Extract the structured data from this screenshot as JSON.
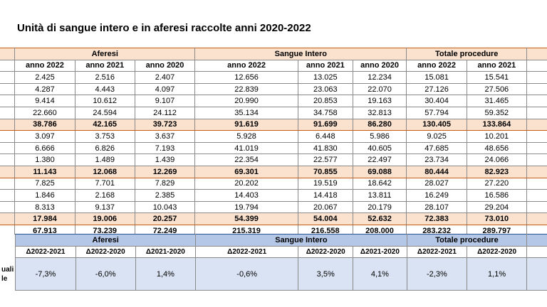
{
  "title": "Unità di sangue intero e in aferesi raccolte anni 2020-2022",
  "groups": [
    "Aferesi",
    "Sangue Intero",
    "Totale procedure"
  ],
  "years": [
    "anno 2022",
    "anno 2021",
    "anno 2020"
  ],
  "rows": [
    {
      "type": "data",
      "cells": [
        "2.425",
        "2.516",
        "2.407",
        "12.656",
        "13.025",
        "12.234",
        "15.081",
        "15.541"
      ]
    },
    {
      "type": "data",
      "cells": [
        "4.287",
        "4.443",
        "4.097",
        "22.839",
        "23.063",
        "22.070",
        "27.126",
        "27.506"
      ]
    },
    {
      "type": "data",
      "cells": [
        "9.414",
        "10.612",
        "9.107",
        "20.990",
        "20.853",
        "19.163",
        "30.404",
        "31.465"
      ]
    },
    {
      "type": "data",
      "cells": [
        "22.660",
        "24.594",
        "24.112",
        "35.134",
        "34.758",
        "32.813",
        "57.794",
        "59.352"
      ]
    },
    {
      "type": "group",
      "cells": [
        "38.786",
        "42.165",
        "39.723",
        "91.619",
        "91.699",
        "86.280",
        "130.405",
        "133.864"
      ]
    },
    {
      "type": "data",
      "cells": [
        "3.097",
        "3.753",
        "3.637",
        "5.928",
        "6.448",
        "5.986",
        "9.025",
        "10.201"
      ]
    },
    {
      "type": "data",
      "cells": [
        "6.666",
        "6.826",
        "7.193",
        "41.019",
        "41.830",
        "40.605",
        "47.685",
        "48.656"
      ]
    },
    {
      "type": "data",
      "cells": [
        "1.380",
        "1.489",
        "1.439",
        "22.354",
        "22.577",
        "22.497",
        "23.734",
        "24.066"
      ]
    },
    {
      "type": "group",
      "cells": [
        "11.143",
        "12.068",
        "12.269",
        "69.301",
        "70.855",
        "69.088",
        "80.444",
        "82.923"
      ]
    },
    {
      "type": "data",
      "cells": [
        "7.825",
        "7.701",
        "7.829",
        "20.202",
        "19.519",
        "18.642",
        "28.027",
        "27.220"
      ]
    },
    {
      "type": "data",
      "cells": [
        "1.846",
        "2.168",
        "2.385",
        "14.403",
        "14.418",
        "13.811",
        "16.249",
        "16.586"
      ]
    },
    {
      "type": "data",
      "cells": [
        "8.313",
        "9.137",
        "10.043",
        "19.794",
        "20.067",
        "20.179",
        "28.107",
        "29.204"
      ]
    },
    {
      "type": "group",
      "cells": [
        "17.984",
        "19.006",
        "20.257",
        "54.399",
        "54.004",
        "52.632",
        "72.383",
        "73.010"
      ]
    },
    {
      "type": "total",
      "cells": [
        "67.913",
        "73.239",
        "72.249",
        "215.319",
        "216.558",
        "208.000",
        "283.232",
        "289.797"
      ]
    }
  ],
  "delta": {
    "label_lines": [
      "uali",
      "le"
    ],
    "headers": [
      "Δ2022-2021",
      "Δ2022-2020",
      "Δ2021-2020",
      "Δ2022-2021",
      "Δ2022-2020",
      "Δ2021-2020",
      "Δ2022-2021",
      "Δ2022-2020"
    ],
    "values": [
      "-7,3%",
      "-6,0%",
      "1,4%",
      "-0,6%",
      "3,5%",
      "4,1%",
      "-2,3%",
      "1,1%"
    ]
  }
}
